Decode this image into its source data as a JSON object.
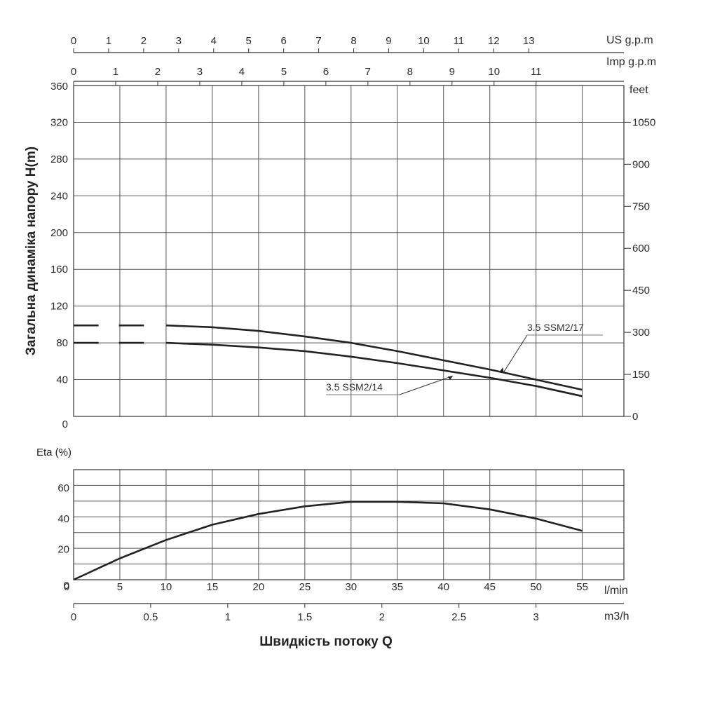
{
  "chart_data": [
    {
      "type": "line",
      "panel": "head",
      "ylabel": "Загальна динаміка напору H(m)",
      "xlabel": "Швидкість потоку Q",
      "x_unit_lmin": "l/min",
      "x_unit_m3h": "m3/h",
      "x_unit_usgpm": "US g.p.m",
      "x_unit_impgpm": "Imp g.p.m",
      "y2_unit": "feet",
      "xlim": [
        0,
        55
      ],
      "ylim": [
        0,
        360
      ],
      "x_ticks_lmin": [
        "5",
        "10",
        "15",
        "20",
        "25",
        "30",
        "35",
        "40",
        "45",
        "50",
        "55"
      ],
      "x_ticks_m3h": [
        "0",
        "0.5",
        "1",
        "1.5",
        "2",
        "2.5",
        "3"
      ],
      "x_ticks_usgpm": [
        "0",
        "1",
        "2",
        "3",
        "4",
        "5",
        "6",
        "7",
        "8",
        "9",
        "10",
        "11",
        "12",
        "13"
      ],
      "x_ticks_impgpm": [
        "0",
        "1",
        "2",
        "3",
        "4",
        "5",
        "6",
        "7",
        "8",
        "9",
        "10",
        "11"
      ],
      "y_ticks": [
        "0",
        "40",
        "80",
        "120",
        "160",
        "200",
        "240",
        "280",
        "320",
        "360"
      ],
      "y2_ticks": [
        "0",
        "150",
        "300",
        "450",
        "600",
        "750",
        "900",
        "1050"
      ],
      "series": [
        {
          "name": "3.5 SSM2/17",
          "x": [
            10,
            15,
            20,
            25,
            30,
            35,
            40,
            45,
            50,
            55
          ],
          "y": [
            99,
            97,
            93,
            87,
            80,
            71,
            61,
            51,
            40,
            29
          ]
        },
        {
          "name": "3.5 SSM2/14",
          "x": [
            10,
            15,
            20,
            25,
            30,
            35,
            40,
            45,
            50,
            55
          ],
          "y": [
            80,
            78,
            75,
            71,
            65,
            58,
            50,
            42,
            33,
            22
          ]
        }
      ]
    },
    {
      "type": "line",
      "panel": "efficiency",
      "ylabel": "Eta (%)",
      "xlim": [
        0,
        55
      ],
      "ylim": [
        0,
        60
      ],
      "y_ticks": [
        "0",
        "20",
        "40",
        "60"
      ],
      "series": [
        {
          "name": "",
          "x": [
            0,
            5,
            10,
            15,
            20,
            25,
            30,
            35,
            40,
            45,
            50,
            55
          ],
          "y": [
            0,
            14,
            26,
            36,
            43,
            48,
            51,
            51,
            50,
            46,
            40,
            32
          ]
        }
      ]
    }
  ]
}
